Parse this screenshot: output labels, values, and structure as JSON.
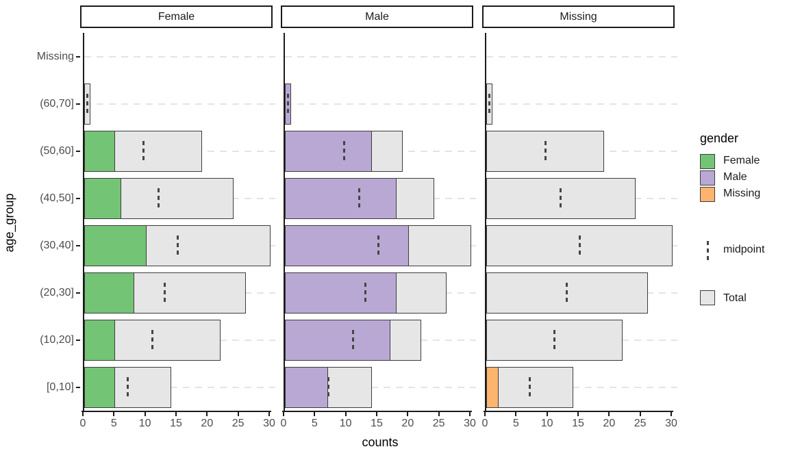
{
  "figure": {
    "xlabel": "counts",
    "ylabel": "age_group",
    "legend": {
      "gender_title": "gender",
      "gender_items": [
        {
          "label": "Female",
          "color": "#74c476"
        },
        {
          "label": "Male",
          "color": "#b9a8d4"
        },
        {
          "label": "Missing",
          "color": "#fcb46e"
        }
      ],
      "midpoint_label": "midpoint",
      "total_label": "Total"
    }
  },
  "chart_data": {
    "type": "bar",
    "orientation": "horizontal",
    "title": "",
    "xlabel": "counts",
    "ylabel": "age_group",
    "xlim": [
      0,
      31
    ],
    "x_ticks": [
      0,
      5,
      10,
      15,
      20,
      25,
      30
    ],
    "grid": "dashed horizontal line per category",
    "legend_position": "right",
    "facets": [
      "Female",
      "Male",
      "Missing"
    ],
    "categories_top_to_bottom": [
      "Missing",
      "(60,70]",
      "(50,60]",
      "(40,50]",
      "(30,40]",
      "(20,30]",
      "(10,20]",
      "[0,10]"
    ],
    "total_by_category": [
      0,
      1,
      19,
      24,
      30,
      26,
      22,
      14
    ],
    "midpoint_by_category": [
      null,
      0.5,
      9.5,
      12,
      15,
      13,
      11,
      7
    ],
    "series": [
      {
        "name": "Female",
        "color": "#74c476",
        "values": [
          0,
          0,
          5,
          6,
          10,
          8,
          5,
          5
        ]
      },
      {
        "name": "Male",
        "color": "#b9a8d4",
        "values": [
          0,
          1,
          14,
          18,
          20,
          18,
          17,
          7
        ]
      },
      {
        "name": "Missing",
        "color": "#fcb46e",
        "values": [
          0,
          0,
          0,
          0,
          0,
          0,
          0,
          2
        ]
      }
    ],
    "total_color": "#e6e6e6",
    "bar_border_color": "#3c3c3c",
    "midpoint_color": "#454545"
  }
}
